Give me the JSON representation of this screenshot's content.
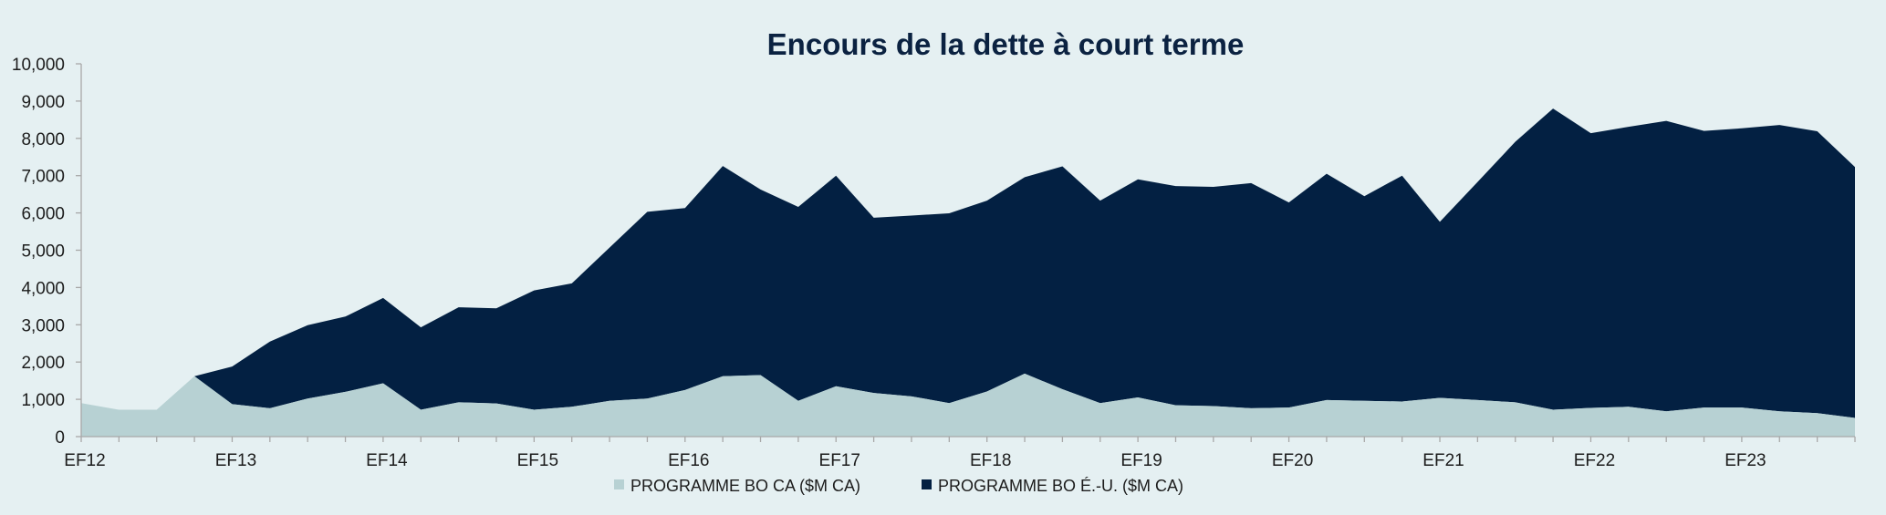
{
  "chart_data": {
    "type": "area",
    "stacked": true,
    "title": "Encours de la dette à court terme",
    "xlabel": "",
    "ylabel": "",
    "ylim": [
      0,
      10000
    ],
    "yticks": [
      "0",
      "1,000",
      "2,000",
      "3,000",
      "4,000",
      "5,000",
      "6,000",
      "7,000",
      "8,000",
      "9,000",
      "10,000"
    ],
    "x_tick_labels": [
      "EF12",
      "EF13",
      "EF14",
      "EF15",
      "EF16",
      "EF17",
      "EF18",
      "EF19",
      "EF20",
      "EF21",
      "EF22",
      "EF23"
    ],
    "points_per_year": 4,
    "grid": false,
    "legend_position": "bottom",
    "series": [
      {
        "name": "PROGRAMME BO CA ($M CA)",
        "color": "#b7d1d3",
        "values": [
          900,
          720,
          720,
          1620,
          870,
          760,
          1020,
          1200,
          1430,
          720,
          920,
          890,
          720,
          800,
          960,
          1020,
          1250,
          1620,
          1650,
          960,
          1350,
          1170,
          1080,
          900,
          1210,
          1690,
          1270,
          900,
          1050,
          840,
          820,
          760,
          780,
          980,
          960,
          940,
          1040,
          980,
          920,
          720,
          770,
          800,
          680,
          780,
          780,
          680,
          630,
          500
        ]
      },
      {
        "name": "PROGRAMME BO É.-U. ($M CA)",
        "color": "#032042",
        "values": [
          0,
          0,
          0,
          0,
          1010,
          1790,
          1970,
          2020,
          2290,
          2210,
          2550,
          2550,
          3200,
          3310,
          4110,
          5010,
          4880,
          5640,
          4980,
          5200,
          5650,
          4700,
          4850,
          5090,
          5120,
          5270,
          5980,
          5430,
          5850,
          5880,
          5880,
          6040,
          5500,
          6070,
          5490,
          6060,
          4720,
          5850,
          6990,
          8080,
          7370,
          7510,
          7790,
          7420,
          7490,
          7680,
          7560,
          6730
        ]
      }
    ]
  }
}
